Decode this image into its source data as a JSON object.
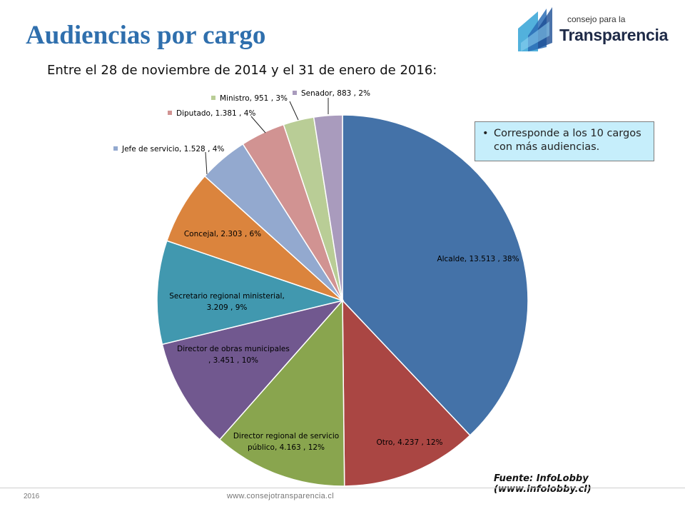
{
  "slide": {
    "title": "Audiencias por cargo",
    "subtitle": "Entre el 28 de noviembre de 2014 y el 31 de enero de 2016:",
    "note": "Corresponde a los 10 cargos con más audiencias.",
    "source": "Fuente: InfoLobby  (www.infolobby.cl)",
    "footer_year": "2016",
    "footer_url": "www.consejotransparencia.cl"
  },
  "logo": {
    "line1": "consejo para la",
    "line2": "Transparencia"
  },
  "chart_data": {
    "type": "pie",
    "title": "",
    "slices": [
      {
        "name": "Alcalde",
        "value": 13513,
        "value_label": "13.513",
        "percent": "38%",
        "color": "#4472a8"
      },
      {
        "name": "Otro",
        "value": 4237,
        "value_label": "4.237",
        "percent": "12%",
        "color": "#aa4643"
      },
      {
        "name": "Director regional de servicio público",
        "value": 4163,
        "value_label": "4.163",
        "percent": "12%",
        "color": "#89a54e"
      },
      {
        "name": "Director de obras municipales",
        "value": 3451,
        "value_label": "3.451",
        "percent": "10%",
        "color": "#71588f"
      },
      {
        "name": "Secretario regional ministerial",
        "value": 3209,
        "value_label": "3.209",
        "percent": "9%",
        "color": "#4198af"
      },
      {
        "name": "Concejal",
        "value": 2303,
        "value_label": "2.303",
        "percent": "6%",
        "color": "#db843d"
      },
      {
        "name": "Jefe de servicio",
        "value": 1528,
        "value_label": "1.528",
        "percent": "4%",
        "color": "#93a9cf"
      },
      {
        "name": "Diputado",
        "value": 1381,
        "value_label": "1.381",
        "percent": "4%",
        "color": "#d19392"
      },
      {
        "name": "Ministro",
        "value": 951,
        "value_label": "951",
        "percent": "3%",
        "color": "#b9cd96"
      },
      {
        "name": "Senador",
        "value": 883,
        "value_label": "883",
        "percent": "2%",
        "color": "#a99bbd"
      }
    ],
    "labels": [
      {
        "lines": [
          "Alcalde,  13.513 , 38%"
        ]
      },
      {
        "lines": [
          "Otro,  4.237 , 12%"
        ]
      },
      {
        "lines": [
          "Director regional de servicio",
          "público,  4.163 , 12%"
        ]
      },
      {
        "lines": [
          "Director de obras municipales",
          ",  3.451 , 10%"
        ]
      },
      {
        "lines": [
          "Secretario regional ministerial,",
          "3.209 , 9%"
        ]
      },
      {
        "lines": [
          "Concejal,  2.303 , 6%"
        ]
      },
      {
        "lines": [
          "Jefe de servicio,  1.528 , 4%"
        ]
      },
      {
        "lines": [
          "Diputado,  1.381 , 4%"
        ]
      },
      {
        "lines": [
          "Ministro,  951 , 3%"
        ]
      },
      {
        "lines": [
          "Senador,  883 , 2%"
        ]
      }
    ],
    "legend": "none"
  }
}
